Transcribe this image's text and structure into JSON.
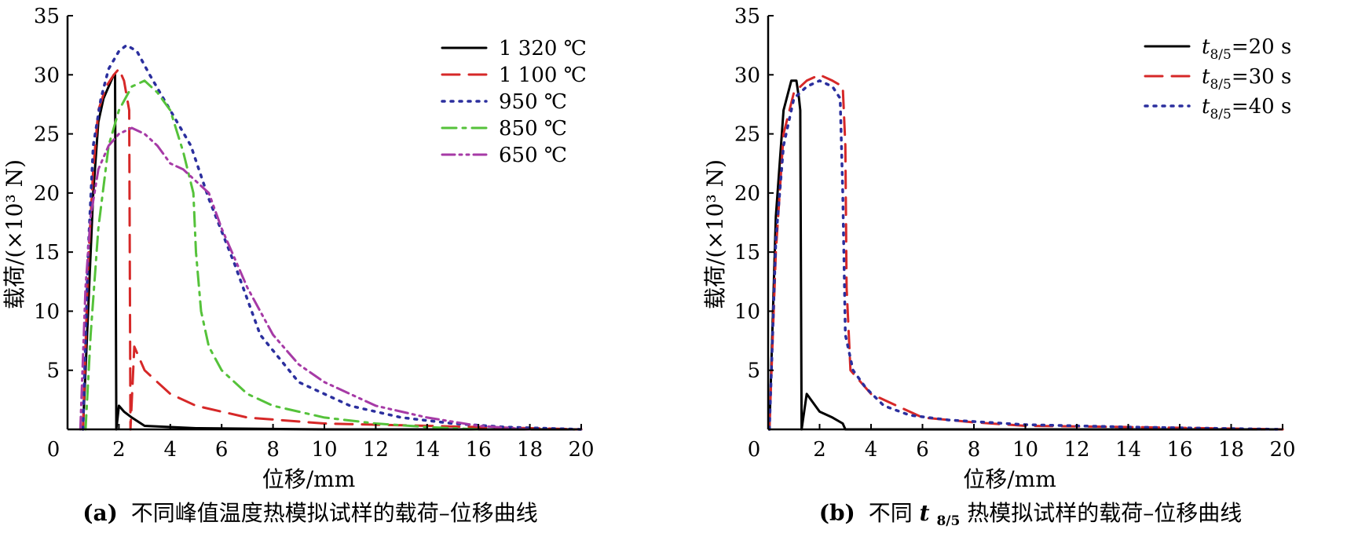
{
  "chart_data": [
    {
      "panel": "a",
      "type": "line",
      "caption_label": "(a)",
      "caption_text": "不同峰值温度热模拟试样的载荷–位移曲线",
      "xlabel": "位移/mm",
      "ylabel": "载荷/(×10³ N)",
      "xlim": [
        0,
        20
      ],
      "ylim": [
        0,
        35
      ],
      "xticks": [
        0,
        2,
        4,
        6,
        8,
        10,
        12,
        14,
        16,
        18,
        20
      ],
      "yticks": [
        5,
        10,
        15,
        20,
        25,
        30,
        35
      ],
      "grid": false,
      "legend_position": "top-right",
      "series": [
        {
          "name": "1 320 ℃",
          "color": "#000000",
          "style": "solid",
          "x": [
            0.6,
            0.8,
            1.0,
            1.2,
            1.4,
            1.6,
            1.8,
            1.85,
            1.9,
            2.0,
            2.2,
            2.5,
            3.0,
            5.0,
            10.0,
            20.0
          ],
          "y": [
            0,
            10,
            20,
            26,
            28,
            29,
            30,
            30,
            0,
            2,
            1.5,
            1,
            0.3,
            0.1,
            0,
            0
          ]
        },
        {
          "name": "1 100 ℃",
          "color": "#d62828",
          "style": "dashed",
          "x": [
            0.6,
            0.8,
            1.0,
            1.2,
            1.5,
            1.8,
            2.0,
            2.2,
            2.4,
            2.45,
            2.6,
            3.0,
            3.5,
            4.0,
            5.0,
            7.0,
            10.0,
            14.0,
            20.0
          ],
          "y": [
            0,
            14,
            22,
            27,
            29,
            30,
            30.5,
            29.5,
            27,
            0,
            7,
            5,
            4,
            3,
            2,
            1,
            0.5,
            0.3,
            0
          ]
        },
        {
          "name": "950 ℃",
          "color": "#2b2f9e",
          "style": "dotted",
          "x": [
            0.6,
            0.8,
            1.0,
            1.3,
            1.6,
            2.0,
            2.3,
            2.7,
            3.2,
            4.0,
            4.8,
            5.5,
            6.5,
            7.5,
            9.0,
            11.0,
            13.0,
            15.0,
            17.0,
            20.0
          ],
          "y": [
            0,
            15,
            24,
            28,
            30.5,
            32,
            32.5,
            32,
            30,
            27,
            24,
            19.5,
            14,
            8,
            4,
            2,
            1,
            0.5,
            0.2,
            0
          ]
        },
        {
          "name": "850 ℃",
          "color": "#55c23a",
          "style": "dashdot",
          "x": [
            0.7,
            0.9,
            1.2,
            1.6,
            2.0,
            2.5,
            3.0,
            3.5,
            4.0,
            4.5,
            4.9,
            5.0,
            5.2,
            5.5,
            6.0,
            7.0,
            8.0,
            10.0,
            12.0,
            14.0,
            16.0
          ],
          "y": [
            0,
            8,
            17,
            24,
            27,
            29,
            29.5,
            28.5,
            27,
            23.5,
            20,
            15,
            10,
            7,
            5,
            3,
            2,
            1,
            0.5,
            0.2,
            0
          ]
        },
        {
          "name": "650 ℃",
          "color": "#a63aa6",
          "style": "dashdotdot",
          "x": [
            0.5,
            0.7,
            0.9,
            1.2,
            1.6,
            2.0,
            2.5,
            3.0,
            3.5,
            4.0,
            4.5,
            5.0,
            5.5,
            6.0,
            7.0,
            8.0,
            9.0,
            10.0,
            12.0,
            14.0,
            16.0,
            18.0
          ],
          "y": [
            0,
            12,
            18,
            22,
            24,
            25,
            25.5,
            25,
            24,
            22.5,
            22,
            21,
            20,
            17,
            12,
            8,
            5.5,
            4,
            2,
            1,
            0.3,
            0
          ]
        }
      ]
    },
    {
      "panel": "b",
      "type": "line",
      "caption_label": "(b)",
      "caption_text_before": "不同",
      "caption_symbol": "t",
      "caption_subscript": "8/5",
      "caption_text_after": "热模拟试样的载荷–位移曲线",
      "xlabel": "位移/mm",
      "ylabel": "载荷/(×10³ N)",
      "xlim": [
        0,
        20
      ],
      "ylim": [
        0,
        35
      ],
      "xticks": [
        0,
        2,
        4,
        6,
        8,
        10,
        12,
        14,
        16,
        18,
        20
      ],
      "yticks": [
        5,
        10,
        15,
        20,
        25,
        30,
        35
      ],
      "grid": false,
      "legend_position": "top-right",
      "series": [
        {
          "name_symbol": "t",
          "name_sub": "8/5",
          "name_value": "=20 s",
          "color": "#000000",
          "style": "solid",
          "x": [
            0.05,
            0.3,
            0.6,
            0.9,
            1.1,
            1.2,
            1.25,
            1.3,
            1.5,
            2.0,
            2.5,
            2.9,
            3.0,
            5.0,
            20.0
          ],
          "y": [
            0,
            18,
            27,
            29.5,
            29.5,
            28,
            27,
            0,
            3,
            1.5,
            1,
            0.5,
            0,
            0,
            0
          ]
        },
        {
          "name_symbol": "t",
          "name_sub": "8/5",
          "name_value": "=30 s",
          "color": "#d62828",
          "style": "dashed",
          "x": [
            0.05,
            0.3,
            0.6,
            1.0,
            1.5,
            2.0,
            2.5,
            2.9,
            3.0,
            3.05,
            3.2,
            3.6,
            4.0,
            5.0,
            6.0,
            8.0,
            10.0,
            14.0,
            20.0
          ],
          "y": [
            0,
            15,
            25,
            28.5,
            29.5,
            30,
            29.5,
            29,
            24,
            12,
            5,
            4,
            3,
            2,
            1,
            0.6,
            0.3,
            0.2,
            0
          ]
        },
        {
          "name_symbol": "t",
          "name_sub": "8/5",
          "name_value": "=40 s",
          "color": "#2b2f9e",
          "style": "dotted",
          "x": [
            0.05,
            0.3,
            0.6,
            1.0,
            1.5,
            2.0,
            2.5,
            2.8,
            2.9,
            3.0,
            3.3,
            3.8,
            4.5,
            5.5,
            7.0,
            10.0,
            14.0,
            20.0
          ],
          "y": [
            0,
            16,
            24,
            28,
            29,
            29.5,
            29,
            28,
            20,
            8,
            5,
            3.5,
            2,
            1.2,
            0.8,
            0.4,
            0.2,
            0
          ]
        }
      ]
    }
  ]
}
